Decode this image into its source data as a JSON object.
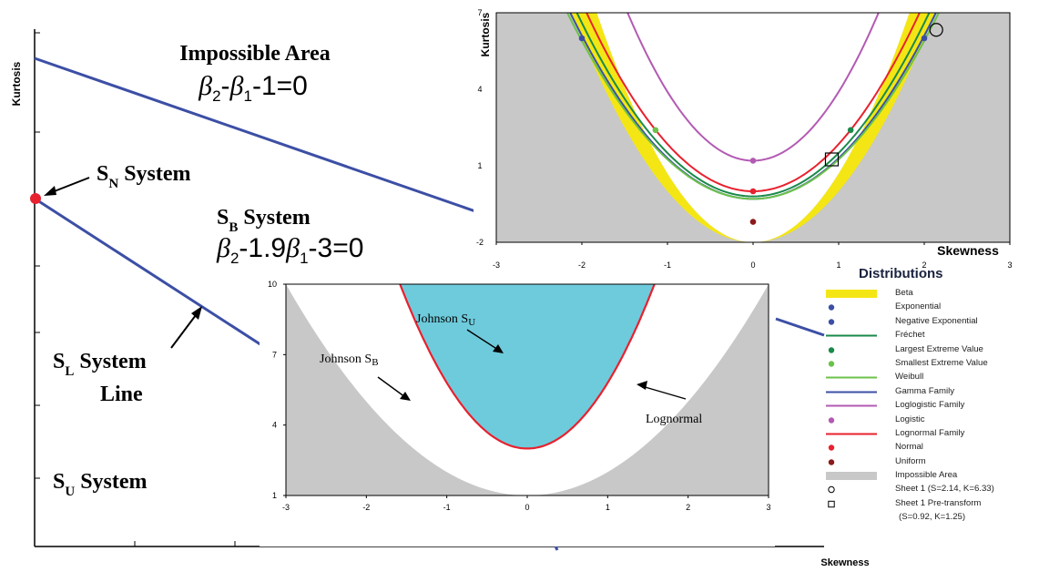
{
  "main": {
    "ylabel": "Kurtosis",
    "xlabel": "Skewness",
    "impossible_area_label": "Impossible Area",
    "eq1": "β₂-β₁-1=0",
    "sn_label": "S",
    "sn_sub": "N",
    "sn_tail": " System",
    "sb_label": "S",
    "sb_sub": "B",
    "sb_tail": " System",
    "eq2": "β₂-1.9β₁-3=0",
    "sl_label": "S",
    "sl_sub": "L",
    "sl_tail": " System",
    "sl_line2": "Line",
    "su_label": "S",
    "su_sub": "U",
    "su_tail": " System",
    "colors": {
      "line": "#3c4fa5",
      "point": "#e8212e"
    }
  },
  "chart_data": [
    {
      "type": "line",
      "title": "",
      "xlabel": "Skewness",
      "ylabel": "Kurtosis",
      "ylim": [
        -2,
        7
      ],
      "xlim": [
        -3,
        3
      ],
      "x_ticks": [
        "-3",
        "-2",
        "-1",
        "0",
        "1",
        "2",
        "3"
      ],
      "y_ticks": [
        "-2",
        "1",
        "4",
        "7"
      ],
      "series": [
        {
          "name": "Beta",
          "kind": "band",
          "color": "#f4e614"
        },
        {
          "name": "Gamma Family",
          "kind": "line",
          "color": "#3c4fa5"
        },
        {
          "name": "Loglogistic Family",
          "kind": "line",
          "color": "#b35ab3"
        },
        {
          "name": "Lognormal Family",
          "kind": "line",
          "color": "#e8212e"
        },
        {
          "name": "Weibull",
          "kind": "line",
          "color": "#6cc24a"
        },
        {
          "name": "Fréchet",
          "kind": "line",
          "color": "#1a8a4a"
        },
        {
          "name": "Impossible Area",
          "kind": "area",
          "color": "#c8c8c8"
        }
      ],
      "points": [
        {
          "name": "Exponential",
          "x": 2,
          "y": 6,
          "color": "#3c4fa5"
        },
        {
          "name": "Negative Exponential",
          "x": -2,
          "y": 6,
          "color": "#3c4fa5"
        },
        {
          "name": "Largest Extreme Value",
          "x": 1.14,
          "y": 2.4,
          "color": "#1a8a4a"
        },
        {
          "name": "Smallest Extreme Value",
          "x": -1.14,
          "y": 2.4,
          "color": "#6cc24a"
        },
        {
          "name": "Logistic",
          "x": 0,
          "y": 1.2,
          "color": "#b35ab3"
        },
        {
          "name": "Normal",
          "x": 0,
          "y": 0,
          "color": "#e8212e"
        },
        {
          "name": "Uniform",
          "x": 0,
          "y": -1.2,
          "color": "#8b1a1a"
        },
        {
          "name": "Sheet 1 (S=2.14, K=6.33)",
          "x": 2.14,
          "y": 6.33,
          "marker": "circle"
        },
        {
          "name": "Sheet 1 Pre-transform (S=0.92, K=1.25)",
          "x": 0.92,
          "y": 1.25,
          "marker": "square"
        }
      ]
    },
    {
      "type": "area",
      "title": "",
      "xlabel": "",
      "ylabel": "",
      "xlim": [
        -3,
        3
      ],
      "ylim": [
        1,
        10
      ],
      "x_ticks": [
        "-3",
        "-2",
        "-1",
        "0",
        "1",
        "2",
        "3"
      ],
      "y_ticks": [
        "1",
        "4",
        "7",
        "10"
      ],
      "regions": [
        {
          "name": "Johnson S_U",
          "color": "#6ecbdc"
        },
        {
          "name": "Johnson S_B",
          "color": "#ffffff"
        },
        {
          "name": "Impossible Area",
          "color": "#c8c8c8"
        }
      ],
      "curves": [
        {
          "name": "Lognormal",
          "color": "#e8212e"
        }
      ],
      "annotations": [
        {
          "text": "Johnson S",
          "sub": "U"
        },
        {
          "text": "Johnson S",
          "sub": "B"
        },
        {
          "text": "Lognormal"
        }
      ]
    }
  ],
  "legend": {
    "title": "Distributions",
    "items": [
      {
        "label": "Beta",
        "type": "bar",
        "color": "#f4e614"
      },
      {
        "label": "Exponential",
        "type": "dot",
        "color": "#3c4fa5"
      },
      {
        "label": "Negative Exponential",
        "type": "dot",
        "color": "#3c4fa5"
      },
      {
        "label": "Fréchet",
        "type": "line",
        "color": "#1a8a4a"
      },
      {
        "label": "Largest Extreme Value",
        "type": "dot",
        "color": "#1a8a4a"
      },
      {
        "label": "Smallest Extreme Value",
        "type": "dot",
        "color": "#6cc24a"
      },
      {
        "label": "Weibull",
        "type": "line",
        "color": "#6cc24a"
      },
      {
        "label": "Gamma Family",
        "type": "line",
        "color": "#3c4fa5"
      },
      {
        "label": "Loglogistic Family",
        "type": "line",
        "color": "#b35ab3"
      },
      {
        "label": "Logistic",
        "type": "dot",
        "color": "#b35ab3"
      },
      {
        "label": "Lognormal Family",
        "type": "line",
        "color": "#e8212e"
      },
      {
        "label": "Normal",
        "type": "dot",
        "color": "#e8212e"
      },
      {
        "label": "Uniform",
        "type": "dot",
        "color": "#8b1a1a"
      },
      {
        "label": "Impossible Area",
        "type": "bar",
        "color": "#c8c8c8"
      },
      {
        "label": "Sheet 1 (S=2.14, K=6.33)",
        "type": "circle",
        "color": "#000000"
      },
      {
        "label": "Sheet 1 Pre-transform",
        "type": "square",
        "color": "#000000"
      },
      {
        "label": " (S=0.92, K=1.25)",
        "type": "none",
        "color": "#000000"
      }
    ]
  }
}
